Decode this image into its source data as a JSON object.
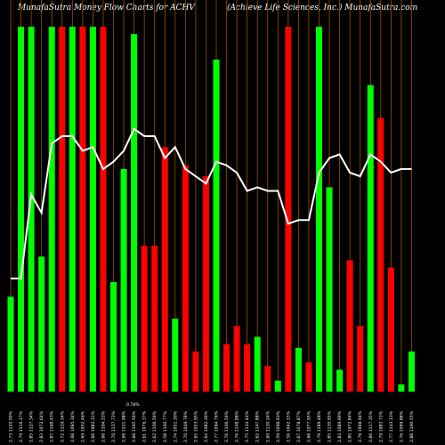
{
  "chart_data": {
    "type": "bar",
    "title": "MunafaSutra Money Flow Charts for ACHV",
    "subtitle": "(Achieve Life Sciences, Inc.) MunafaSutra.com",
    "categories": [
      "2.73 1120.00%",
      "2.79 1116.17%",
      "2.85 1127.34%",
      "2.83 1072.64%",
      "2.87 1168.43%",
      "2.72 1129.34%",
      "2.68 1095.34%",
      "2.69 1052.46%",
      "2.66 1082.31%",
      "2.66 1104.33%",
      "2.70 1137.73%",
      "2.68 1121.98%",
      "2.68 1195.56%",
      "2.61 1076.37%",
      "2.62 1109.56%",
      "2.58 1100.77%",
      "2.74 1051.30%",
      "2.70 1049.78%",
      "2.65 1053.95%",
      "2.64 1082.36%",
      "2.77 1094.76%",
      "2.76 1106.56%",
      "2.76 1148.88%",
      "2.75 1132.44%",
      "2.62 1147.88%",
      "2.60 1130.24%",
      "2.59 1098.93%",
      "2.56 1042.15%",
      "2.67 1078.87%",
      "2.68 1077.95%",
      "2.79 1189.48%",
      "2.85 1130.95%",
      "2.83 1089.99%",
      "2.80 1072.84%",
      "2.79 1068.94%",
      "2.86 1117.35%",
      "2.79 1083.73%",
      "2.77 1143.13%",
      "2.76 1099.88%",
      "2.88 1190.55%"
    ],
    "values": [
      26,
      100,
      100,
      37,
      100,
      100,
      100,
      100,
      100,
      100,
      30,
      61,
      98,
      40,
      40,
      67,
      20,
      62,
      11,
      59,
      91,
      13,
      18,
      13,
      15,
      7,
      3,
      100,
      12,
      8,
      100,
      56,
      6,
      36,
      18,
      84,
      75,
      34,
      2,
      11
    ],
    "colors": [
      "#00ff00",
      "#00ff00",
      "#00ff00",
      "#00ff00",
      "#00ff00",
      "#ff0000",
      "#00ff00",
      "#ff0000",
      "#00ff00",
      "#ff0000",
      "#00ff00",
      "#00ff00",
      "#00ff00",
      "#ff0000",
      "#ff0000",
      "#ff0000",
      "#00ff00",
      "#ff0000",
      "#ff0000",
      "#ff0000",
      "#00ff00",
      "#ff0000",
      "#ff0000",
      "#ff0000",
      "#00ff00",
      "#ff0000",
      "#00ff00",
      "#ff0000",
      "#00ff00",
      "#ff0000",
      "#00ff00",
      "#00ff00",
      "#00ff00",
      "#ff0000",
      "#ff0000",
      "#00ff00",
      "#ff0000",
      "#ff0000",
      "#00ff00",
      "#00ff00"
    ],
    "line": {
      "color": "#ffffff",
      "values": [
        31,
        31,
        54,
        49,
        68,
        70,
        70,
        66,
        67,
        61,
        63,
        66,
        72,
        70,
        70,
        64,
        67,
        61,
        59,
        57,
        63,
        62,
        60,
        55,
        56,
        55,
        55,
        46,
        47,
        47,
        60,
        64,
        65,
        60,
        59,
        65,
        63,
        60,
        61,
        61
      ]
    },
    "note": "0.78%",
    "ylim": [
      0,
      100
    ]
  }
}
